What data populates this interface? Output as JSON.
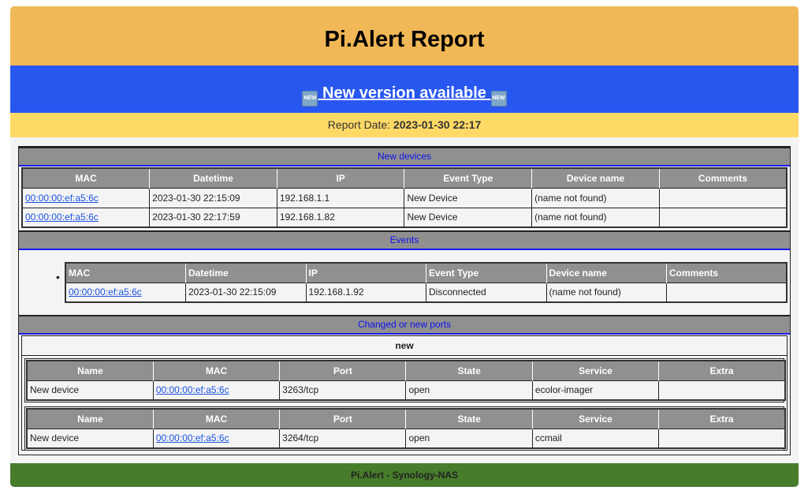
{
  "header": {
    "title": "Pi.Alert Report"
  },
  "version_banner": {
    "label": "New version available",
    "icon": "new-badge-icon",
    "icon_text": "NEW"
  },
  "report_date": {
    "label": "Report Date:",
    "value": "2023-01-30 22:17"
  },
  "new_devices": {
    "title": "New devices",
    "columns": [
      "MAC",
      "Datetime",
      "IP",
      "Event Type",
      "Device name",
      "Comments"
    ],
    "rows": [
      [
        "00:00:00:ef:a5:6c",
        "2023-01-30 22:15:09",
        "192.168.1.1",
        "New Device",
        "(name not found)",
        ""
      ],
      [
        "00:00:00:ef:a5:6c",
        "2023-01-30 22:17:59",
        "192.168.1.82",
        "New Device",
        "(name not found)",
        ""
      ]
    ]
  },
  "events": {
    "title": "Events",
    "columns": [
      "MAC",
      "Datetime",
      "IP",
      "Event Type",
      "Device name",
      "Comments"
    ],
    "rows": [
      [
        "00:00:00:ef:a5:6c",
        "2023-01-30 22:15:09",
        "192.168.1.92",
        "Disconnected",
        "(name not found)",
        ""
      ]
    ]
  },
  "ports": {
    "title": "Changed or new ports",
    "group": "new",
    "columns": [
      "Name",
      "MAC",
      "Port",
      "State",
      "Service",
      "Extra"
    ],
    "tables": [
      [
        [
          "New device",
          "00:00:00:ef:a5:6c",
          "3263/tcp",
          "open",
          "ecolor-imager",
          ""
        ]
      ],
      [
        [
          "New device",
          "00:00:00:ef:a5:6c",
          "3264/tcp",
          "open",
          "ccmail",
          ""
        ]
      ]
    ]
  },
  "footer": {
    "text": "Pi.Alert - Synology-NAS"
  },
  "colors": {
    "header": "#f0b856",
    "banner": "#2857f0",
    "date_bar": "#ffd966",
    "footer": "#467c2a",
    "section": "#909090"
  }
}
